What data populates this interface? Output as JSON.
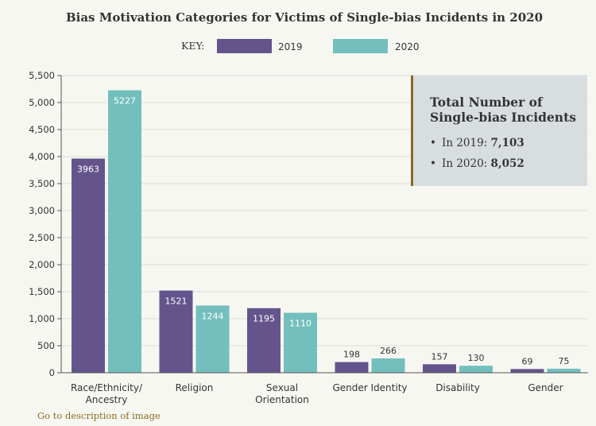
{
  "chart_data": {
    "type": "bar",
    "title": "Bias Motivation Categories for Victims of Single-bias Incidents in 2020",
    "legend_key_label": "KEY:",
    "categories": [
      "Race/Ethnicity/ Ancestry",
      "Religion",
      "Sexual Orientation",
      "Gender Identity",
      "Disability",
      "Gender"
    ],
    "series": [
      {
        "name": "2019",
        "values": [
          3963,
          1521,
          1195,
          198,
          157,
          69
        ],
        "color": "#64548c"
      },
      {
        "name": "2020",
        "values": [
          5227,
          1244,
          1110,
          266,
          130,
          75
        ],
        "color": "#72bfbe"
      }
    ],
    "ylim": [
      0,
      5500
    ],
    "yticks": [
      "0",
      "500",
      "1,000",
      "1,500",
      "2,000",
      "2,500",
      "3,000",
      "3,500",
      "4,000",
      "4,500",
      "5,000",
      "5,500"
    ],
    "grid": true,
    "legend_position": "top-center",
    "annotation_box": {
      "title_line1": "Total Number of",
      "title_line2": "Single-bias Incidents",
      "items": [
        {
          "label": "In 2019: ",
          "value": "7,103"
        },
        {
          "label": "In 2020: ",
          "value": "8,052"
        }
      ],
      "background": "#d8dee0",
      "accent": "#8b6a1f"
    }
  },
  "link": {
    "description": "Go to description of image"
  }
}
